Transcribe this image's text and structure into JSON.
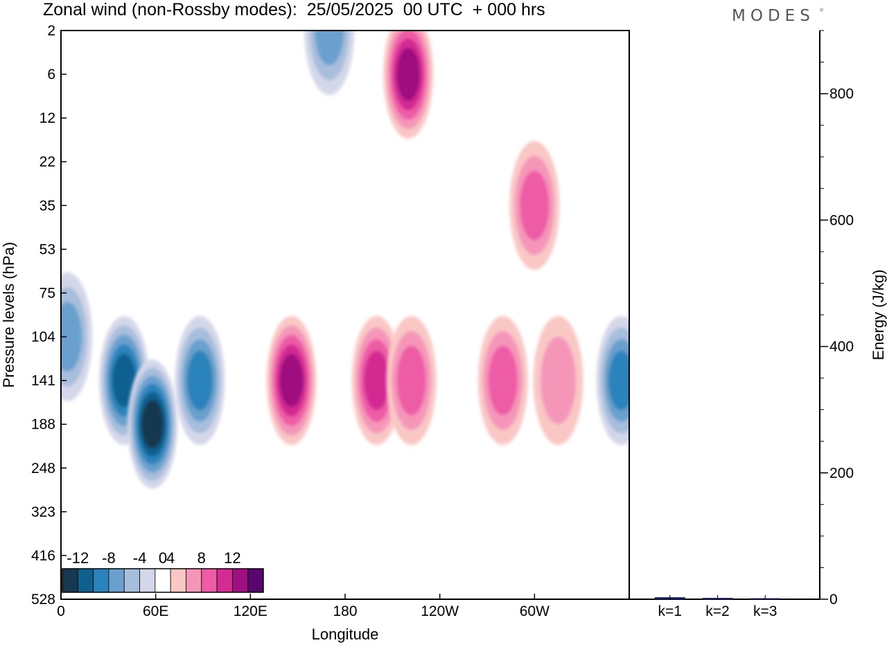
{
  "header": {
    "title": "Zonal wind (non-Rossby modes):  25/05/2025  00 UTC  + 000 hrs",
    "logo": "MODES",
    "logo_mark": "®"
  },
  "chart_data": [
    {
      "type": "heatmap",
      "title": "Zonal wind (non-Rossby modes):  25/05/2025  00 UTC  + 000 hrs",
      "xlabel": "Longitude",
      "ylabel": "Pressure levels (hPa)",
      "x_ticks": [
        "0",
        "60E",
        "120E",
        "180",
        "120W",
        "60W"
      ],
      "x_tick_values": [
        0,
        60,
        120,
        180,
        240,
        300
      ],
      "xlim": [
        0,
        360
      ],
      "y_ticks": [
        "2",
        "6",
        "12",
        "22",
        "35",
        "53",
        "75",
        "104",
        "141",
        "188",
        "248",
        "323",
        "416",
        "528"
      ],
      "colorbar": {
        "tick_labels": [
          "-12",
          "-8",
          "-4",
          "0",
          "4",
          "8",
          "12"
        ],
        "levels": [
          -14,
          -12,
          -10,
          -8,
          -6,
          -4,
          -2,
          2,
          4,
          6,
          8,
          10,
          12,
          14
        ],
        "colors": [
          "#163850",
          "#10608f",
          "#2b83bb",
          "#6aa0cd",
          "#a7bedd",
          "#d4d7e9",
          "#ffffff",
          "#f9c8c5",
          "#f596b9",
          "#ee5ca6",
          "#d32b92",
          "#9f0f7f",
          "#58086c"
        ]
      },
      "features": [
        {
          "lon": 40,
          "level": "141",
          "value": -10
        },
        {
          "lon": 58,
          "level": "188",
          "value": -12
        },
        {
          "lon": 88,
          "level": "141",
          "value": -8
        },
        {
          "lon": 4,
          "level": "104",
          "value": -6
        },
        {
          "lon": 146,
          "level": "141",
          "value": 10
        },
        {
          "lon": 200,
          "level": "141",
          "value": 8
        },
        {
          "lon": 222,
          "level": "141",
          "value": 6
        },
        {
          "lon": 280,
          "level": "141",
          "value": 5
        },
        {
          "lon": 315,
          "level": "141",
          "value": 4
        },
        {
          "lon": 355,
          "level": "141",
          "value": -7
        },
        {
          "lon": 220,
          "level": "6",
          "value": 10
        },
        {
          "lon": 170,
          "level": "2",
          "value": -5
        },
        {
          "lon": 300,
          "level": "35",
          "value": 6
        }
      ]
    },
    {
      "type": "bar",
      "ylabel": "Energy (J/kg)",
      "categories": [
        "k=1",
        "k=2",
        "k=3"
      ],
      "values": [
        2,
        1,
        0.5
      ],
      "ylim": [
        0,
        900
      ],
      "y_ticks": [
        0,
        200,
        400,
        600,
        800
      ],
      "bar_color": "#1a1a66"
    }
  ]
}
